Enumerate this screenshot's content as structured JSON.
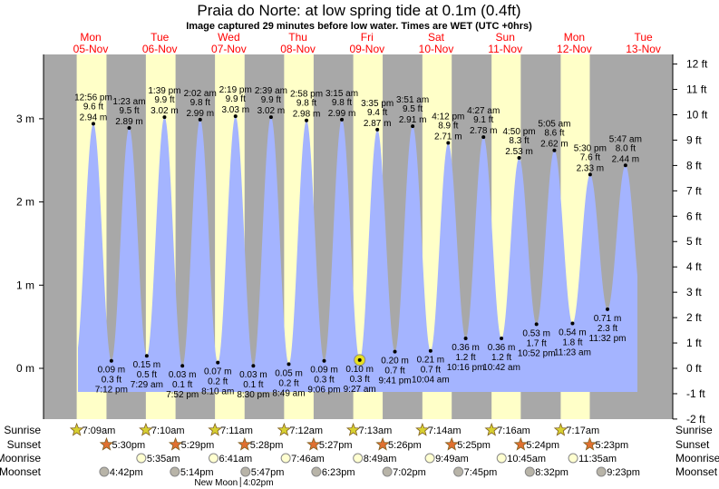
{
  "chart_data": {
    "type": "area",
    "title": "Praia do Norte: at low  spring tide at 0.1m (0.4ft)",
    "subtitle": "Image captured 29 minutes before low water. Times are WET (UTC +0hrs)",
    "days": [
      {
        "dow": "Mon",
        "date": "05-Nov"
      },
      {
        "dow": "Tue",
        "date": "06-Nov"
      },
      {
        "dow": "Wed",
        "date": "07-Nov"
      },
      {
        "dow": "Thu",
        "date": "08-Nov"
      },
      {
        "dow": "Fri",
        "date": "09-Nov"
      },
      {
        "dow": "Sat",
        "date": "10-Nov"
      },
      {
        "dow": "Sun",
        "date": "11-Nov"
      },
      {
        "dow": "Mon",
        "date": "12-Nov"
      },
      {
        "dow": "Tue",
        "date": "13-Nov"
      }
    ],
    "y_left": {
      "unit": "m",
      "ticks": [
        "0 m",
        "1 m",
        "2 m",
        "3 m"
      ],
      "range_m": [
        -0.61,
        3.66
      ]
    },
    "y_right": {
      "unit": "ft",
      "ticks": [
        "-2 ft",
        "-1 ft",
        "0 ft",
        "1 ft",
        "2 ft",
        "3 ft",
        "4 ft",
        "5 ft",
        "6 ft",
        "7 ft",
        "8 ft",
        "9 ft",
        "10 ft",
        "11 ft",
        "12 ft"
      ]
    },
    "tides": [
      {
        "day": 0,
        "type": "high",
        "time": "12:56 pm",
        "ft": "9.6 ft",
        "m": 2.94
      },
      {
        "day": 0,
        "type": "low",
        "time": "7:12 pm",
        "ft": "0.3 ft",
        "m": 0.09
      },
      {
        "day": 1,
        "type": "high",
        "time": "1:23 am",
        "ft": "9.5 ft",
        "m": 2.89
      },
      {
        "day": 1,
        "type": "low",
        "time": "7:29 am",
        "ft": "0.5 ft",
        "m": 0.15
      },
      {
        "day": 1,
        "type": "high",
        "time": "1:39 pm",
        "ft": "9.9 ft",
        "m": 3.02
      },
      {
        "day": 1,
        "type": "low",
        "time": "7:52 pm",
        "ft": "0.1 ft",
        "m": 0.03
      },
      {
        "day": 2,
        "type": "high",
        "time": "2:02 am",
        "ft": "9.8 ft",
        "m": 2.99
      },
      {
        "day": 2,
        "type": "low",
        "time": "8:10 am",
        "ft": "0.2 ft",
        "m": 0.07
      },
      {
        "day": 2,
        "type": "high",
        "time": "2:19 pm",
        "ft": "9.9 ft",
        "m": 3.03
      },
      {
        "day": 2,
        "type": "low",
        "time": "8:30 pm",
        "ft": "0.1 ft",
        "m": 0.03
      },
      {
        "day": 3,
        "type": "high",
        "time": "2:39 am",
        "ft": "9.9 ft",
        "m": 3.02
      },
      {
        "day": 3,
        "type": "low",
        "time": "8:49 am",
        "ft": "0.2 ft",
        "m": 0.05
      },
      {
        "day": 3,
        "type": "high",
        "time": "2:58 pm",
        "ft": "9.8 ft",
        "m": 2.98
      },
      {
        "day": 3,
        "type": "low",
        "time": "9:06 pm",
        "ft": "0.3 ft",
        "m": 0.09
      },
      {
        "day": 4,
        "type": "high",
        "time": "3:15 am",
        "ft": "9.8 ft",
        "m": 2.99
      },
      {
        "day": 4,
        "type": "low",
        "time": "9:27 am",
        "ft": "0.3 ft",
        "m": 0.1,
        "current": true
      },
      {
        "day": 4,
        "type": "high",
        "time": "3:35 pm",
        "ft": "9.4 ft",
        "m": 2.87
      },
      {
        "day": 4,
        "type": "low",
        "time": "9:41 pm",
        "ft": "0.7 ft",
        "m": 0.2
      },
      {
        "day": 5,
        "type": "high",
        "time": "3:51 am",
        "ft": "9.5 ft",
        "m": 2.91
      },
      {
        "day": 5,
        "type": "low",
        "time": "10:04 am",
        "ft": "0.7 ft",
        "m": 0.21
      },
      {
        "day": 5,
        "type": "high",
        "time": "4:12 pm",
        "ft": "8.9 ft",
        "m": 2.71
      },
      {
        "day": 5,
        "type": "low",
        "time": "10:16 pm",
        "ft": "1.2 ft",
        "m": 0.36
      },
      {
        "day": 6,
        "type": "high",
        "time": "4:27 am",
        "ft": "9.1 ft",
        "m": 2.78
      },
      {
        "day": 6,
        "type": "low",
        "time": "10:42 am",
        "ft": "1.2 ft",
        "m": 0.36
      },
      {
        "day": 6,
        "type": "high",
        "time": "4:50 pm",
        "ft": "8.3 ft",
        "m": 2.53
      },
      {
        "day": 6,
        "type": "low",
        "time": "10:52 pm",
        "ft": "1.7 ft",
        "m": 0.53
      },
      {
        "day": 7,
        "type": "high",
        "time": "5:05 am",
        "ft": "8.6 ft",
        "m": 2.62
      },
      {
        "day": 7,
        "type": "low",
        "time": "11:23 am",
        "ft": "1.8 ft",
        "m": 0.54
      },
      {
        "day": 7,
        "type": "high",
        "time": "5:30 pm",
        "ft": "7.6 ft",
        "m": 2.33
      },
      {
        "day": 7,
        "type": "low",
        "time": "11:32 pm",
        "ft": "2.3 ft",
        "m": 0.71
      },
      {
        "day": 8,
        "type": "high",
        "time": "5:47 am",
        "ft": "8.0 ft",
        "m": 2.44
      }
    ],
    "astro": {
      "labels": {
        "sunrise": "Sunrise",
        "sunset": "Sunset",
        "moonrise": "Moonrise",
        "moonset": "Moonset"
      },
      "sunrise": [
        [
          0,
          "7:09am"
        ],
        [
          1,
          "7:10am"
        ],
        [
          2,
          "7:11am"
        ],
        [
          3,
          "7:12am"
        ],
        [
          4,
          "7:13am"
        ],
        [
          5,
          "7:14am"
        ],
        [
          6,
          "7:16am"
        ],
        [
          7,
          "7:17am"
        ]
      ],
      "sunset": [
        [
          0,
          "5:30pm"
        ],
        [
          1,
          "5:29pm"
        ],
        [
          2,
          "5:28pm"
        ],
        [
          3,
          "5:27pm"
        ],
        [
          4,
          "5:26pm"
        ],
        [
          5,
          "5:25pm"
        ],
        [
          6,
          "5:24pm"
        ],
        [
          7,
          "5:23pm"
        ]
      ],
      "moonrise": [
        [
          1,
          "5:35am"
        ],
        [
          2,
          "6:41am"
        ],
        [
          3,
          "7:46am"
        ],
        [
          4,
          "8:49am"
        ],
        [
          5,
          "9:49am"
        ],
        [
          6,
          "10:45am"
        ],
        [
          7,
          "11:35am"
        ]
      ],
      "moonset": [
        [
          0,
          "4:42pm"
        ],
        [
          1,
          "5:14pm"
        ],
        [
          2,
          "5:47pm"
        ],
        [
          3,
          "6:23pm"
        ],
        [
          4,
          "7:02pm"
        ],
        [
          5,
          "7:45pm"
        ],
        [
          6,
          "8:32pm"
        ],
        [
          7,
          "9:23pm"
        ]
      ],
      "moon_phase": {
        "day": 2,
        "label": "New Moon",
        "time": "4:02pm"
      }
    },
    "colors": {
      "water": "#a4b4ff",
      "night": "#a8a8a8",
      "day": "#ffffc8",
      "day_label": "#ff0000",
      "sunrise": "#d8d030",
      "sunset": "#e07030",
      "moonrise": "#ffffd0",
      "moonset": "#b8b4a8",
      "current": "#e8e020"
    }
  }
}
